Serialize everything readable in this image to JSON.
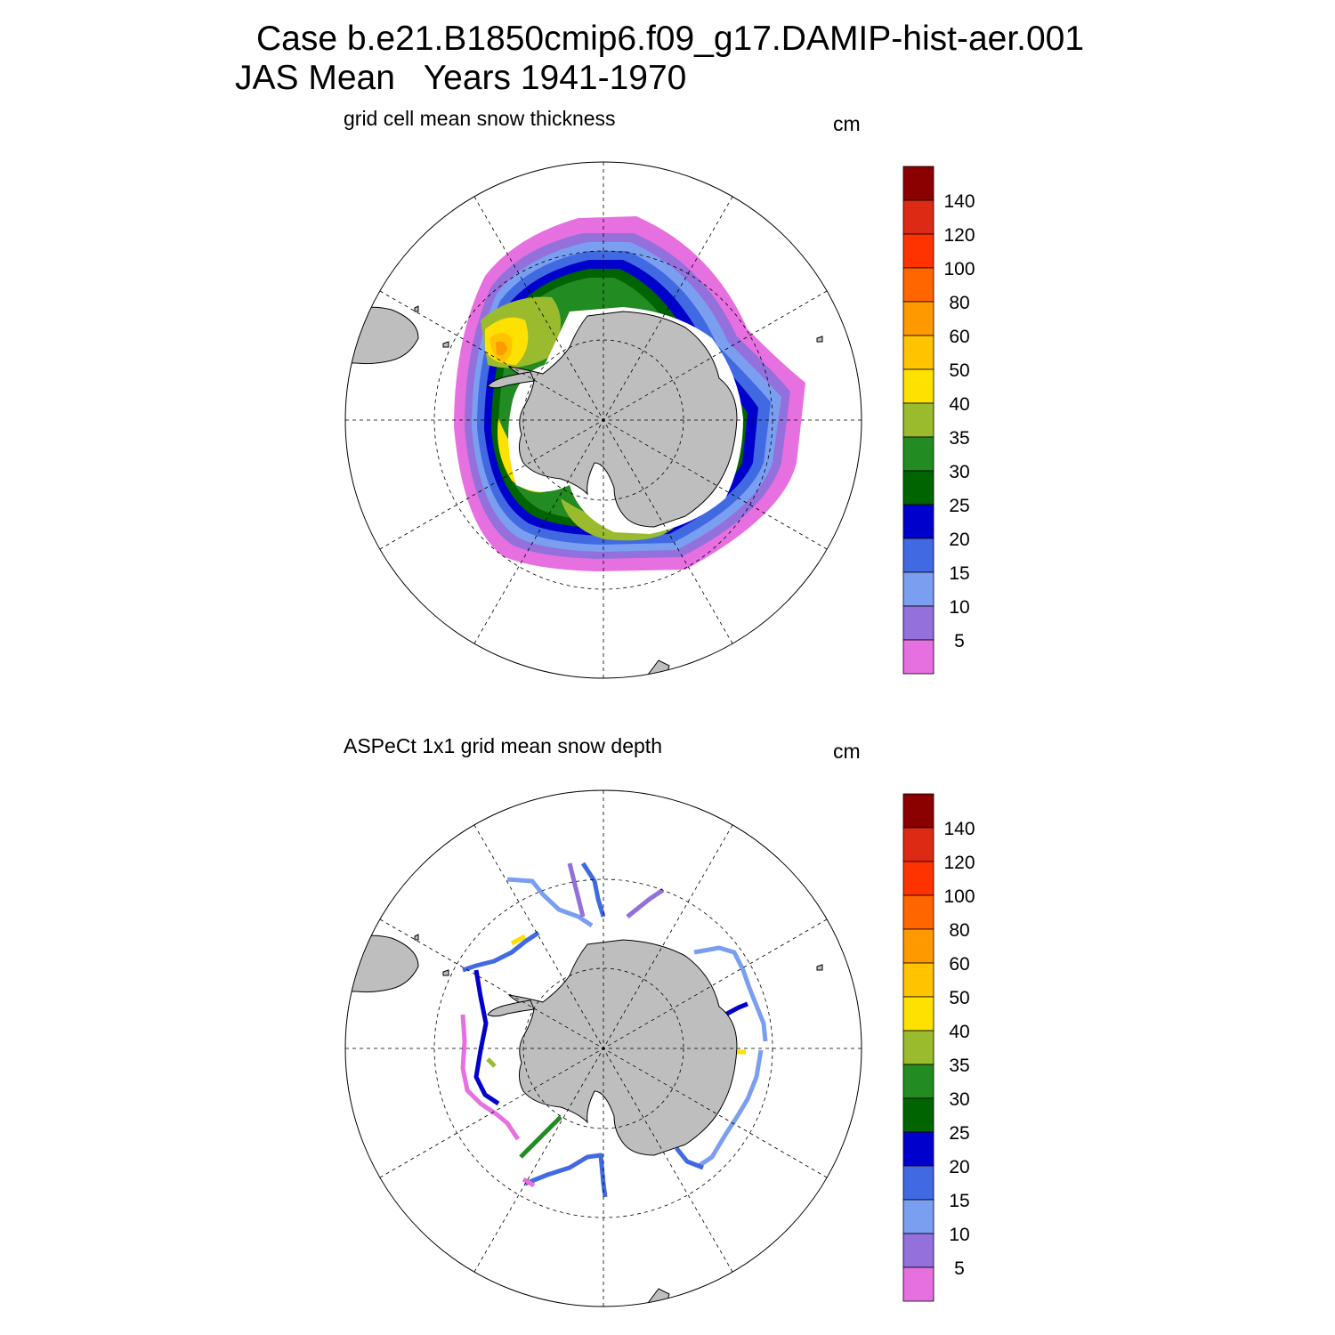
{
  "header": {
    "title_line1": "Case b.e21.B1850cmip6.f09_g17.DAMIP-hist-aer.001",
    "title_line2": "JAS Mean   Years 1941-1970"
  },
  "colorbar": {
    "colors": [
      "#e770e0",
      "#9370db",
      "#7b9ff0",
      "#4169e1",
      "#0000cd",
      "#006400",
      "#228b22",
      "#9abb2e",
      "#ffe100",
      "#ffc300",
      "#ff9900",
      "#ff6600",
      "#ff3300",
      "#dd2a14",
      "#8b0000"
    ],
    "labels": [
      "5",
      "10",
      "15",
      "20",
      "25",
      "30",
      "35",
      "40",
      "50",
      "60",
      "80",
      "100",
      "120",
      "140"
    ]
  },
  "colors": {
    "land": "#bebebe",
    "grid": "#000000"
  },
  "panels": [
    {
      "subtitle": "grid cell mean snow thickness",
      "units": "cm"
    },
    {
      "subtitle": "ASPeCt 1x1 grid mean snow depth",
      "units": "cm"
    }
  ]
}
